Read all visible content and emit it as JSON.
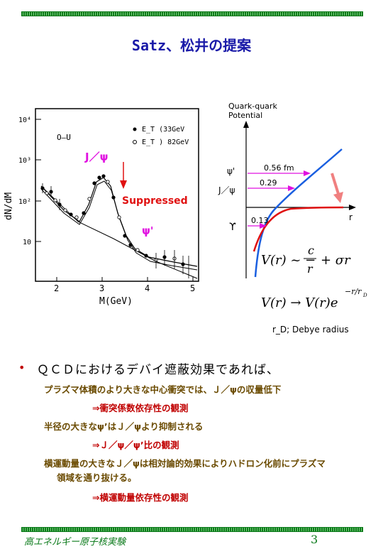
{
  "title": "Satz、松井の提案",
  "left_plot": {
    "y_ticks": [
      "10⁴",
      "10³",
      "10²",
      "10"
    ],
    "x_ticks": [
      "2",
      "3",
      "4",
      "5"
    ],
    "ylabel": "dN/dM",
    "xlabel": "M(GeV)",
    "system": "O–U",
    "legend": [
      "E_T (33GeV",
      "E_T ) 82GeV"
    ],
    "jpsi_label": "J／ψ",
    "suppressed_label": "Suppressed",
    "psiprime_label": "ψ'"
  },
  "right_plot": {
    "title_line1": "Quark-quark",
    "title_line2": "Potential",
    "axis_r": "r",
    "labels": [
      "ψ'",
      "J／ψ",
      "ϒ"
    ],
    "radii": [
      "0.56 fm",
      "0.29",
      "0.13"
    ],
    "eq1_lhs": "V(r) ~ −",
    "eq1_num": "c",
    "eq1_den": "r",
    "eq1_rhs": "+ σr",
    "eq2": "V(r) → V(r)e",
    "eq2_exp": "−r/r",
    "eq2_exp_sub": "D",
    "debye": "r_D; Debye radius"
  },
  "bullet": "ＱＣＤにおけるデバイ遮蔽効果であれば、",
  "lines": [
    "プラズマ体積のより大きな中心衝突では、Ｊ／ψの収量低下",
    "⇒衝突係数依存性の観測",
    "半径の大きなψ’はＪ／ψより抑制される",
    "⇒Ｊ／ψ／ψ’比の観測",
    "横運動量の大きなＪ／ψは相対論的効果によりハドロン化前にプラズマ",
    "領域を通り抜ける。",
    "⇒横運動量依存性の観測"
  ],
  "footer_left": "高エネルギー原子核実験",
  "footer_page": "3"
}
